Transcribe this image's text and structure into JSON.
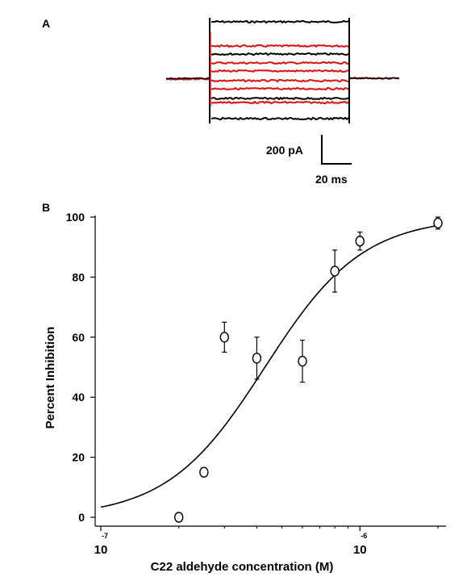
{
  "panel_a": {
    "label": "A",
    "scale_bar": {
      "current_label": "200  pA",
      "time_label": "20 ms"
    },
    "trace_colors": {
      "control": "#000000",
      "aldehyde": "#e01010"
    }
  },
  "panel_b": {
    "label": "B"
  },
  "chart_data": {
    "type": "scatter",
    "title": "",
    "xlabel": "C22 aldehyde concentration (M)",
    "ylabel": "Percent Inhibition",
    "x_scale": "log",
    "xlim": [
      1e-07,
      2e-06
    ],
    "ylim": [
      0,
      100
    ],
    "yticks": [
      0,
      20,
      40,
      60,
      80,
      100
    ],
    "xtick_labels": [
      {
        "base": "10",
        "exp": "-7",
        "value": 1e-07
      },
      {
        "base": "10",
        "exp": "-6",
        "value": 1e-06
      }
    ],
    "points": [
      {
        "x": 2e-07,
        "y": 0,
        "err": 0
      },
      {
        "x": 2.5e-07,
        "y": 15,
        "err": 1.5
      },
      {
        "x": 3e-07,
        "y": 60,
        "err": 5
      },
      {
        "x": 4e-07,
        "y": 53,
        "err": 7
      },
      {
        "x": 6e-07,
        "y": 52,
        "err": 7
      },
      {
        "x": 8e-07,
        "y": 82,
        "err": 7
      },
      {
        "x": 1e-06,
        "y": 92,
        "err": 3
      },
      {
        "x": 2e-06,
        "y": 98,
        "err": 2
      }
    ],
    "fit": {
      "ic50": 4.3e-07,
      "hill": 2.3,
      "x_start": 1e-07,
      "x_end": 2e-06
    },
    "grid": false,
    "marker": "open-circle"
  }
}
